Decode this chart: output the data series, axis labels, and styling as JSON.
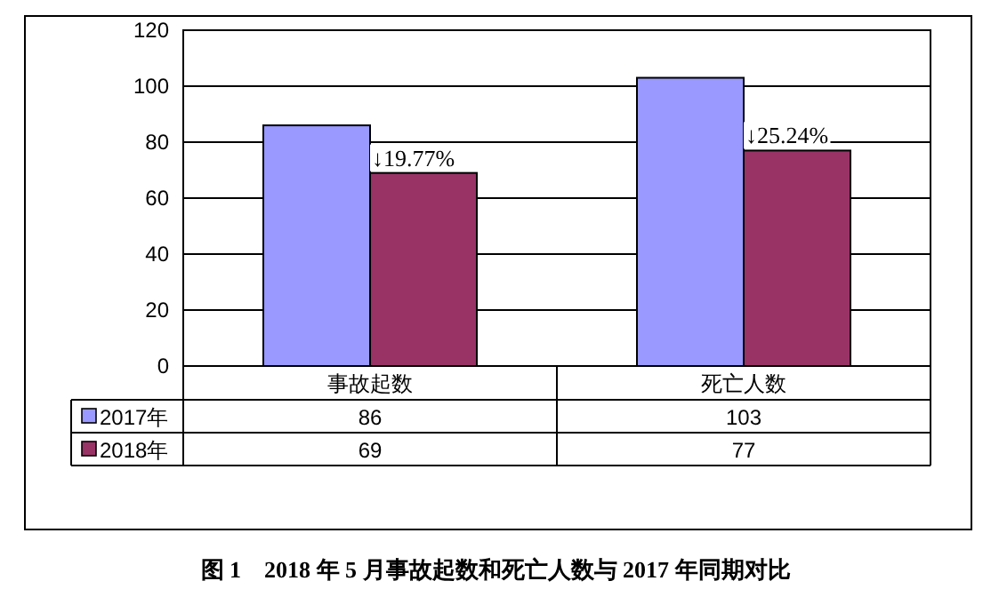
{
  "chart_data": {
    "type": "bar",
    "title": "图 1　2018 年 5 月事故起数和死亡人数与 2017 年同期对比",
    "categories": [
      "事故起数",
      "死亡人数"
    ],
    "series": [
      {
        "name": "2017年",
        "color": "#9999ff",
        "values": [
          86,
          103
        ]
      },
      {
        "name": "2018年",
        "color": "#993366",
        "values": [
          69,
          77
        ]
      }
    ],
    "ylim": [
      0,
      120
    ],
    "yticks": [
      0,
      20,
      40,
      60,
      80,
      100,
      120
    ],
    "grid": "y",
    "legend": "bottom",
    "data_labels": true,
    "annotations": [
      {
        "text": "↓19.77%",
        "x": "事故起数",
        "y": 69
      },
      {
        "text": "↓25.24%",
        "x": "死亡人数",
        "y": 77
      }
    ]
  }
}
